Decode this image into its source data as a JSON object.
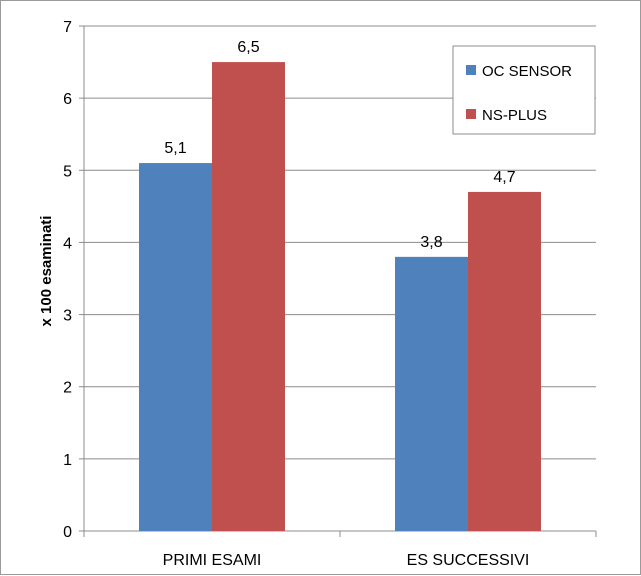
{
  "chart_data": {
    "type": "bar",
    "title": "",
    "xlabel": "",
    "ylabel": "x 100 esaminati",
    "ylim": [
      0,
      7
    ],
    "yticks": [
      "0",
      "1",
      "2",
      "3",
      "4",
      "5",
      "6",
      "7"
    ],
    "grid": true,
    "legend_position": "top-right",
    "categories": [
      "PRIMI ESAMI",
      "ES SUCCESSIVI"
    ],
    "series": [
      {
        "name": "OC SENSOR",
        "color": "#4f81bd",
        "values": [
          5.1,
          3.8
        ],
        "labels": [
          "5,1",
          "3,8"
        ]
      },
      {
        "name": "NS-PLUS",
        "color": "#c0504d",
        "values": [
          6.5,
          4.7
        ],
        "labels": [
          "6,5",
          "4,7"
        ]
      }
    ]
  }
}
